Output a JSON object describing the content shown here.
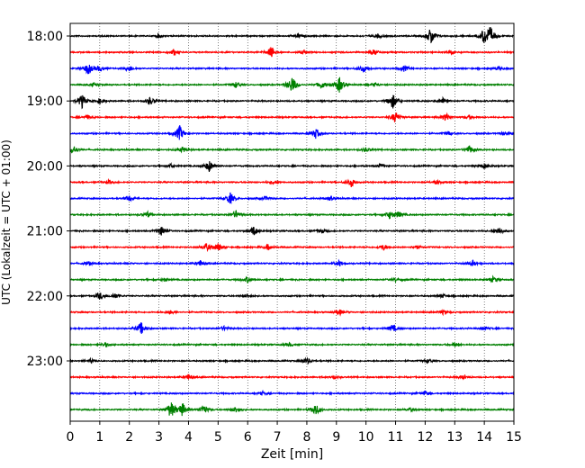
{
  "chart_data": {
    "type": "line",
    "title": "",
    "xlabel": "Zeit  [min]",
    "ylabel": "UTC (Lokalzeit = UTC + 01:00)",
    "xlim": [
      0,
      15
    ],
    "x_ticks": [
      "0",
      "1",
      "2",
      "3",
      "4",
      "5",
      "6",
      "7",
      "8",
      "9",
      "10",
      "11",
      "12",
      "13",
      "14",
      "15"
    ],
    "y_tick_labels": [
      "18:00",
      "19:00",
      "20:00",
      "21:00",
      "22:00",
      "23:00"
    ],
    "grid": "vertical dotted lines at every minute",
    "trace_interval_min": 15,
    "colors": [
      "#000000",
      "#ff0000",
      "#0000ff",
      "#008000"
    ],
    "traces": [
      {
        "start": "18:00",
        "color": "#000000",
        "events": [
          [
            12.2,
            0.9
          ],
          [
            14.0,
            0.7
          ],
          [
            14.2,
            0.8
          ],
          [
            3.0,
            0.2
          ],
          [
            7.7,
            0.2
          ],
          [
            10.4,
            0.2
          ]
        ]
      },
      {
        "start": "18:15",
        "color": "#ff0000",
        "events": [
          [
            6.8,
            0.6
          ],
          [
            3.5,
            0.3
          ],
          [
            7.9,
            0.2
          ],
          [
            10.3,
            0.3
          ],
          [
            12.9,
            0.2
          ]
        ]
      },
      {
        "start": "18:30",
        "color": "#0000ff",
        "events": [
          [
            0.6,
            0.6
          ],
          [
            1.0,
            0.3
          ],
          [
            2.0,
            0.3
          ],
          [
            9.9,
            0.4
          ],
          [
            11.3,
            0.3
          ],
          [
            14.5,
            0.2
          ]
        ]
      },
      {
        "start": "18:45",
        "color": "#008000",
        "events": [
          [
            7.5,
            0.9
          ],
          [
            9.1,
            0.8
          ],
          [
            8.5,
            0.4
          ],
          [
            5.6,
            0.3
          ],
          [
            0.8,
            0.2
          ],
          [
            10.3,
            0.2
          ]
        ]
      },
      {
        "start": "19:00",
        "color": "#000000",
        "events": [
          [
            0.4,
            0.7
          ],
          [
            1.0,
            0.3
          ],
          [
            2.7,
            0.4
          ],
          [
            10.9,
            0.8
          ],
          [
            12.6,
            0.3
          ]
        ]
      },
      {
        "start": "19:15",
        "color": "#ff0000",
        "events": [
          [
            0.6,
            0.2
          ],
          [
            11.0,
            0.6
          ],
          [
            12.7,
            0.4
          ],
          [
            13.5,
            0.2
          ]
        ]
      },
      {
        "start": "19:30",
        "color": "#0000ff",
        "events": [
          [
            3.7,
            0.8
          ],
          [
            8.3,
            0.5
          ],
          [
            12.8,
            0.2
          ],
          [
            14.7,
            0.2
          ]
        ]
      },
      {
        "start": "19:45",
        "color": "#008000",
        "events": [
          [
            0.1,
            0.5
          ],
          [
            3.8,
            0.3
          ],
          [
            10.0,
            0.2
          ],
          [
            13.5,
            0.4
          ]
        ]
      },
      {
        "start": "20:00",
        "color": "#000000",
        "events": [
          [
            4.7,
            0.6
          ],
          [
            3.4,
            0.2
          ],
          [
            10.5,
            0.2
          ],
          [
            14.0,
            0.3
          ]
        ]
      },
      {
        "start": "20:15",
        "color": "#ff0000",
        "events": [
          [
            9.5,
            0.5
          ],
          [
            1.3,
            0.2
          ],
          [
            6.9,
            0.2
          ],
          [
            12.4,
            0.2
          ]
        ]
      },
      {
        "start": "20:30",
        "color": "#0000ff",
        "events": [
          [
            5.4,
            0.6
          ],
          [
            2.0,
            0.3
          ],
          [
            6.6,
            0.2
          ],
          [
            8.8,
            0.2
          ]
        ]
      },
      {
        "start": "20:45",
        "color": "#008000",
        "events": [
          [
            2.6,
            0.3
          ],
          [
            5.6,
            0.4
          ],
          [
            10.8,
            0.4
          ],
          [
            11.1,
            0.3
          ]
        ]
      },
      {
        "start": "21:00",
        "color": "#000000",
        "events": [
          [
            3.1,
            0.5
          ],
          [
            6.2,
            0.5
          ],
          [
            14.5,
            0.4
          ],
          [
            8.5,
            0.2
          ]
        ]
      },
      {
        "start": "21:15",
        "color": "#ff0000",
        "events": [
          [
            4.6,
            0.4
          ],
          [
            5.0,
            0.4
          ],
          [
            6.7,
            0.3
          ],
          [
            10.6,
            0.3
          ],
          [
            11.7,
            0.2
          ]
        ]
      },
      {
        "start": "21:30",
        "color": "#0000ff",
        "events": [
          [
            4.4,
            0.3
          ],
          [
            9.1,
            0.3
          ],
          [
            13.6,
            0.3
          ],
          [
            0.6,
            0.2
          ]
        ]
      },
      {
        "start": "21:45",
        "color": "#008000",
        "events": [
          [
            6.0,
            0.3
          ],
          [
            14.3,
            0.3
          ],
          [
            11.0,
            0.2
          ],
          [
            3.2,
            0.2
          ]
        ]
      },
      {
        "start": "22:00",
        "color": "#000000",
        "events": [
          [
            1.0,
            0.4
          ],
          [
            1.5,
            0.3
          ],
          [
            6.0,
            0.2
          ],
          [
            12.6,
            0.2
          ]
        ]
      },
      {
        "start": "22:15",
        "color": "#ff0000",
        "events": [
          [
            9.1,
            0.3
          ],
          [
            3.4,
            0.2
          ],
          [
            12.6,
            0.2
          ]
        ]
      },
      {
        "start": "22:30",
        "color": "#0000ff",
        "events": [
          [
            2.4,
            0.6
          ],
          [
            10.9,
            0.4
          ],
          [
            5.2,
            0.2
          ],
          [
            14.0,
            0.2
          ]
        ]
      },
      {
        "start": "22:45",
        "color": "#008000",
        "events": [
          [
            1.2,
            0.2
          ],
          [
            7.4,
            0.2
          ],
          [
            13.0,
            0.2
          ]
        ]
      },
      {
        "start": "23:00",
        "color": "#000000",
        "events": [
          [
            8.0,
            0.3
          ],
          [
            12.1,
            0.2
          ],
          [
            0.7,
            0.2
          ]
        ]
      },
      {
        "start": "23:15",
        "color": "#ff0000",
        "events": [
          [
            4.0,
            0.3
          ],
          [
            8.9,
            0.2
          ],
          [
            13.3,
            0.2
          ]
        ]
      },
      {
        "start": "23:30",
        "color": "#0000ff",
        "events": [
          [
            6.5,
            0.2
          ],
          [
            12.0,
            0.2
          ]
        ]
      },
      {
        "start": "23:45",
        "color": "#008000",
        "events": [
          [
            3.4,
            0.9
          ],
          [
            3.8,
            0.7
          ],
          [
            4.5,
            0.5
          ],
          [
            8.3,
            0.6
          ],
          [
            5.6,
            0.3
          ],
          [
            11.5,
            0.2
          ]
        ]
      }
    ]
  }
}
